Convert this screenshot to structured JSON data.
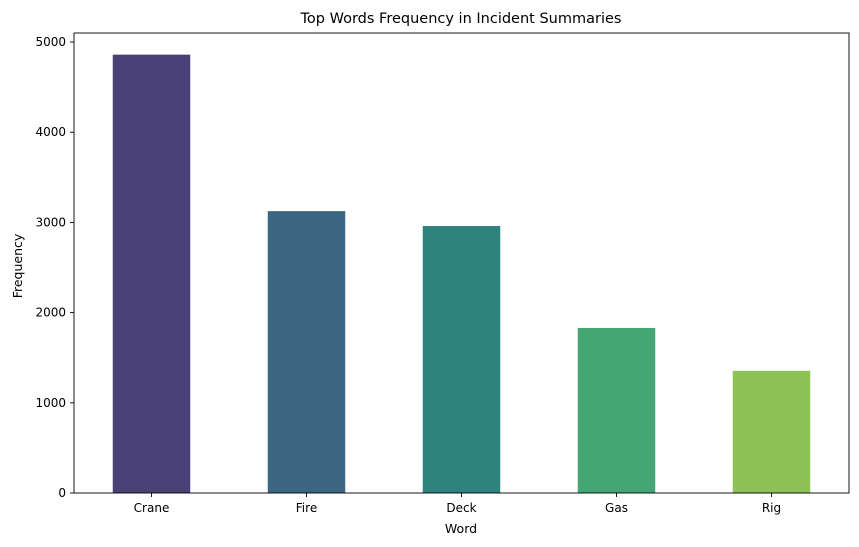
{
  "chart_data": {
    "type": "bar",
    "title": "Top Words Frequency in Incident Summaries",
    "xlabel": "Word",
    "ylabel": "Frequency",
    "categories": [
      "Crane",
      "Fire",
      "Deck",
      "Gas",
      "Rig"
    ],
    "values": [
      4860,
      3125,
      2960,
      1830,
      1355
    ],
    "colors": [
      "#4a4178",
      "#3c6682",
      "#2e847d",
      "#44a675",
      "#8dc257"
    ],
    "ylim": [
      0,
      5000
    ],
    "yticks": [
      0,
      1000,
      2000,
      3000,
      4000,
      5000
    ],
    "grid": false,
    "legend": "none"
  }
}
